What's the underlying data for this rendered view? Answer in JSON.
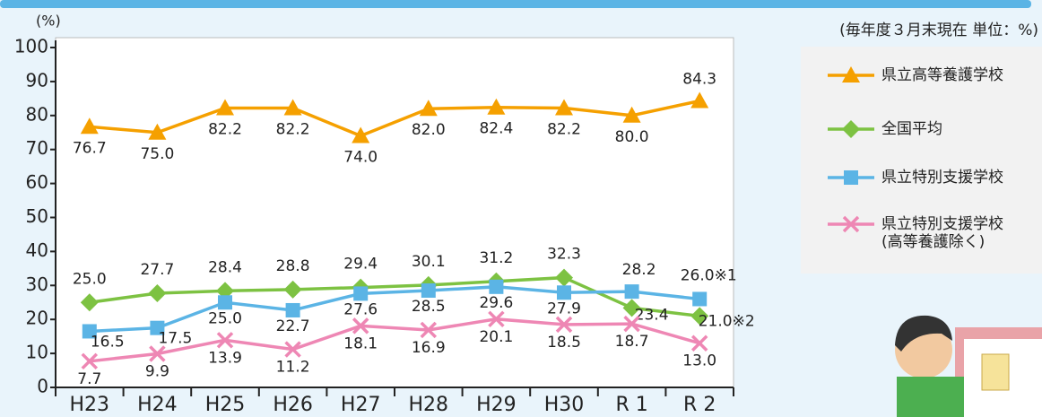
{
  "chart_data": {
    "type": "line",
    "subtitle": "(毎年度３月末現在 単位：%)",
    "y_label": "(%)",
    "categories": [
      "H23",
      "H24",
      "H25",
      "H26",
      "H27",
      "H28",
      "H29",
      "H30",
      "R 1",
      "R 2"
    ],
    "ylim": [
      0,
      100
    ],
    "yticks": [
      0,
      10,
      20,
      30,
      40,
      50,
      60,
      70,
      80,
      90,
      100
    ],
    "grid": false,
    "series": [
      {
        "name": "県立高等養護学校",
        "color": "#f5a000",
        "marker": "triangle",
        "values": [
          76.7,
          75.0,
          82.2,
          82.2,
          74.0,
          82.0,
          82.4,
          82.2,
          80.0,
          84.3
        ],
        "value_labels": [
          "76.7",
          "75.0",
          "82.2",
          "82.2",
          "74.0",
          "82.0",
          "82.4",
          "82.2",
          "80.0",
          "84.3"
        ]
      },
      {
        "name": "全国平均",
        "color": "#7dc242",
        "marker": "diamond",
        "values": [
          25.0,
          27.7,
          28.4,
          28.8,
          29.4,
          30.1,
          31.2,
          32.3,
          23.4,
          21.0
        ],
        "value_labels": [
          "25.0",
          "27.7",
          "28.4",
          "28.8",
          "29.4",
          "30.1",
          "31.2",
          "32.3",
          "23.4",
          "21.0※2"
        ]
      },
      {
        "name": "県立特別支援学校",
        "color": "#5bb4e5",
        "marker": "square",
        "values": [
          16.5,
          17.5,
          25.0,
          22.7,
          27.6,
          28.5,
          29.6,
          27.9,
          28.2,
          26.0
        ],
        "value_labels": [
          "16.5",
          "17.5",
          "25.0",
          "22.7",
          "27.6",
          "28.5",
          "29.6",
          "27.9",
          "28.2",
          "26.0※1"
        ]
      },
      {
        "name": "県立特別支援学校\n(高等養護除く)",
        "color": "#ee87b4",
        "marker": "x",
        "values": [
          7.7,
          9.9,
          13.9,
          11.2,
          18.1,
          16.9,
          20.1,
          18.5,
          18.7,
          13.0
        ],
        "value_labels": [
          "7.7",
          "9.9",
          "13.9",
          "11.2",
          "18.1",
          "16.9",
          "20.1",
          "18.5",
          "18.7",
          "13.0"
        ]
      }
    ]
  }
}
